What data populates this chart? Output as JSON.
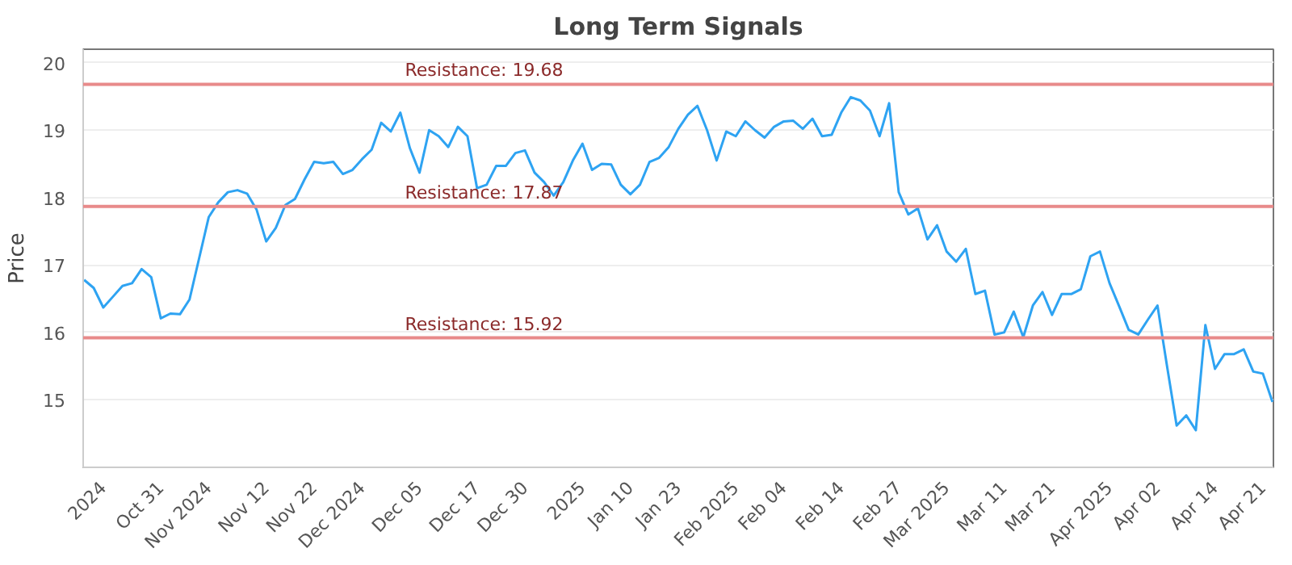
{
  "chart_data": {
    "type": "line",
    "title": "Long Term Signals",
    "ylabel": "Price",
    "categories": [
      null,
      null,
      "2024",
      null,
      null,
      null,
      null,
      null,
      "Oct 31",
      null,
      null,
      null,
      null,
      "Nov 2024",
      null,
      null,
      null,
      null,
      null,
      "Nov 12",
      null,
      null,
      null,
      null,
      "Nov 22",
      null,
      null,
      null,
      null,
      "Dec 2024",
      null,
      null,
      null,
      null,
      null,
      "Dec 05",
      null,
      null,
      null,
      null,
      null,
      "Dec 17",
      null,
      null,
      null,
      null,
      "Dec 30",
      null,
      null,
      null,
      null,
      null,
      "2025",
      null,
      null,
      null,
      null,
      "Jan 10",
      null,
      null,
      null,
      null,
      "Jan 23",
      null,
      null,
      null,
      null,
      null,
      "Feb 2025",
      null,
      null,
      null,
      null,
      "Feb 04",
      null,
      null,
      null,
      null,
      null,
      "Feb 14",
      null,
      null,
      null,
      null,
      null,
      "Feb 27",
      null,
      null,
      null,
      null,
      "Mar 2025",
      null,
      null,
      null,
      null,
      null,
      "Mar 11",
      null,
      null,
      null,
      null,
      "Mar 21",
      null,
      null,
      null,
      null,
      null,
      "Apr 2025",
      null,
      null,
      null,
      null,
      "Apr 02",
      null,
      null,
      null,
      null,
      null,
      "Apr 14",
      null,
      null,
      null,
      null,
      "Apr 21",
      null
    ],
    "series": [
      {
        "color": "#2ea3f2",
        "values": [
          16.78,
          16.66,
          16.37,
          16.53,
          16.69,
          16.73,
          16.94,
          16.82,
          16.21,
          16.28,
          16.27,
          16.49,
          17.1,
          17.71,
          17.93,
          18.08,
          18.11,
          18.06,
          17.82,
          17.35,
          17.55,
          17.89,
          17.98,
          18.27,
          18.53,
          18.51,
          18.53,
          18.35,
          18.41,
          18.57,
          18.71,
          19.11,
          18.98,
          19.26,
          18.73,
          18.37,
          19.0,
          18.91,
          18.75,
          19.05,
          18.91,
          18.14,
          18.19,
          18.47,
          18.47,
          18.66,
          18.7,
          18.37,
          18.23,
          18.03,
          18.23,
          18.55,
          18.8,
          18.41,
          18.5,
          18.49,
          18.19,
          18.05,
          18.19,
          18.53,
          18.59,
          18.75,
          19.02,
          19.23,
          19.36,
          19.0,
          18.55,
          18.98,
          18.91,
          19.13,
          19.0,
          18.89,
          19.05,
          19.13,
          19.14,
          19.02,
          19.17,
          18.91,
          18.93,
          19.26,
          19.49,
          19.44,
          19.29,
          18.91,
          19.4,
          18.08,
          17.75,
          17.84,
          17.38,
          17.59,
          17.2,
          17.05,
          17.24,
          16.57,
          16.62,
          15.97,
          16.0,
          16.31,
          15.93,
          16.4,
          16.6,
          16.26,
          16.57,
          16.57,
          16.64,
          17.13,
          17.2,
          16.73,
          16.39,
          16.04,
          15.97,
          16.19,
          16.4,
          15.5,
          14.62,
          14.77,
          14.55,
          16.11,
          15.46,
          15.68,
          15.68,
          15.75,
          15.42,
          15.39,
          14.97
        ]
      }
    ],
    "ylim": [
      14,
      20.2
    ],
    "yticks": [
      15,
      16,
      17,
      18,
      19,
      20
    ],
    "grid": "y",
    "ref_lines": [
      {
        "axis": "y",
        "value": 19.68,
        "label": "Resistance: 19.68",
        "color": "#e88a8a"
      },
      {
        "axis": "y",
        "value": 17.87,
        "label": "Resistance: 17.87",
        "color": "#e88a8a"
      },
      {
        "axis": "y",
        "value": 15.92,
        "label": "Resistance: 15.92",
        "color": "#e88a8a"
      }
    ]
  }
}
